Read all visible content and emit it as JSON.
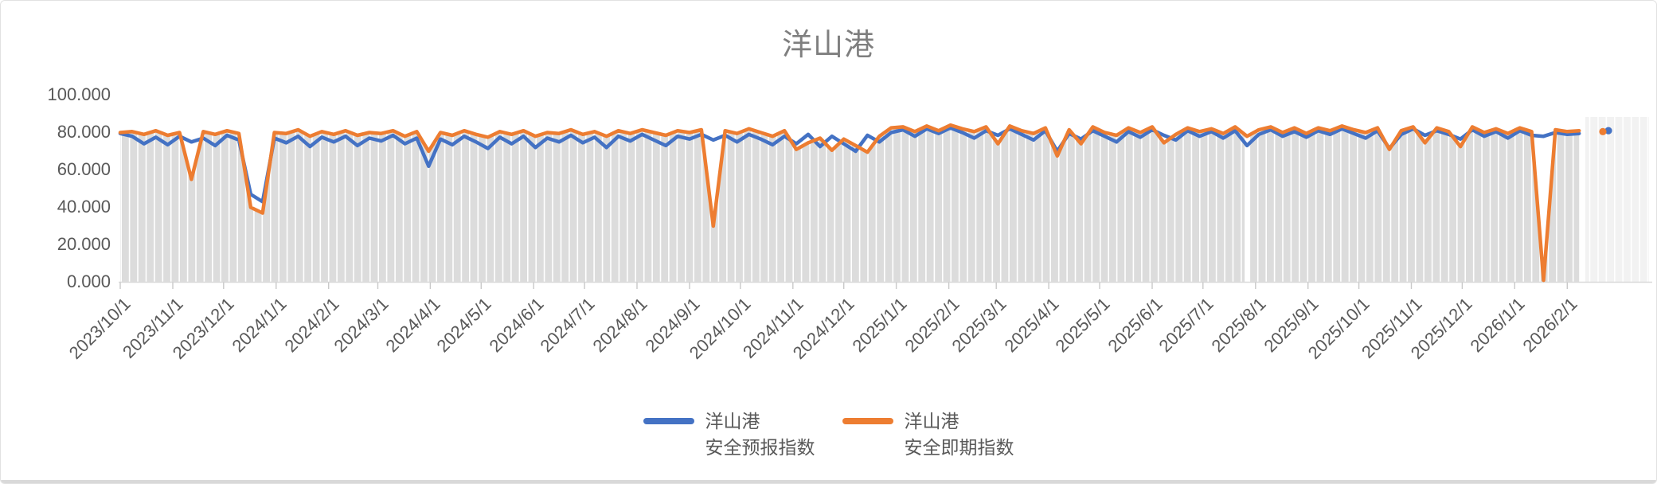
{
  "chart": {
    "title": "洋山港",
    "title_color": "#7f7f7f",
    "axis_text_color": "#595959"
  },
  "legend": {
    "items": [
      {
        "line1": "洋山港",
        "line2": "安全预报指数",
        "color": "#4472C4"
      },
      {
        "line1": "洋山港",
        "line2": "安全即期指数",
        "color": "#ED7D31"
      }
    ]
  },
  "chart_data": {
    "type": "line",
    "title": "洋山港",
    "legend_position": "bottom",
    "grid": "vertical-stripes",
    "sample_interval_days": 7,
    "x_axis": {
      "start_date": "2023/10/1",
      "end_date": "2026/2/22",
      "tick_labels": [
        "2023/10/1",
        "2023/11/1",
        "2023/12/1",
        "2024/1/1",
        "2024/2/1",
        "2024/3/1",
        "2024/4/1",
        "2024/5/1",
        "2024/6/1",
        "2024/7/1",
        "2024/8/1",
        "2024/9/1",
        "2024/10/1",
        "2024/11/1",
        "2024/12/1",
        "2025/1/1",
        "2025/2/1",
        "2025/3/1",
        "2025/4/1",
        "2025/5/1",
        "2025/6/1",
        "2025/7/1",
        "2025/8/1",
        "2025/9/1",
        "2025/10/1",
        "2025/11/1",
        "2025/12/1",
        "2026/1/1",
        "2026/2/1"
      ]
    },
    "y_axis": {
      "tick_labels": [
        "100.000",
        "80.000",
        "60.000",
        "40.000",
        "20.000",
        "0.000"
      ],
      "min": 0,
      "max": 100,
      "tick_step": 20
    },
    "series": [
      {
        "name": "洋山港 安全预报指数",
        "color": "#4472C4",
        "values": [
          79.5,
          78,
          74,
          77.5,
          73.5,
          78,
          75,
          77,
          73,
          78.5,
          76,
          47,
          43,
          77,
          74.5,
          78,
          72.5,
          77.5,
          75,
          78,
          73,
          77,
          75.5,
          78.5,
          74,
          77,
          62,
          76.5,
          73.5,
          78,
          75,
          71.5,
          77.5,
          74,
          78,
          72,
          77,
          75,
          78.5,
          74.5,
          77.5,
          72,
          78,
          75.5,
          79,
          76,
          73,
          78,
          76.5,
          79,
          76,
          78.5,
          75,
          79,
          76.5,
          73.5,
          78,
          74,
          79,
          72.5,
          78,
          74,
          70,
          78.5,
          75,
          80,
          81.5,
          78,
          82,
          79.5,
          82.5,
          80,
          77,
          81,
          78.5,
          82,
          79,
          76,
          81,
          70,
          79.5,
          76.5,
          81,
          78,
          75,
          80.5,
          77.5,
          81.5,
          78.5,
          76,
          81,
          78,
          80.5,
          77,
          81,
          73,
          79,
          81.5,
          78,
          80.5,
          77.5,
          81,
          79,
          82,
          79.5,
          77,
          81,
          71.5,
          79,
          82,
          78.5,
          81,
          79,
          76.5,
          81.5,
          78,
          80.5,
          77,
          81,
          78.5,
          78,
          80,
          79,
          79.5,
          null,
          81
        ]
      },
      {
        "name": "洋山港 安全即期指数",
        "color": "#ED7D31",
        "values": [
          80,
          80.5,
          79,
          81,
          78.5,
          80,
          55,
          80.5,
          79,
          81,
          79.5,
          40,
          37,
          80,
          79.5,
          81.5,
          78,
          80.5,
          79,
          81,
          78.5,
          80,
          79.5,
          81,
          78,
          80.5,
          70,
          80,
          78.5,
          81,
          79,
          77.5,
          80.5,
          79,
          81,
          78,
          80,
          79.5,
          81.5,
          79,
          80.5,
          78,
          81,
          79.5,
          81.5,
          80,
          78.5,
          81,
          80,
          81.5,
          30,
          81,
          79.5,
          82,
          80,
          78,
          81,
          71,
          74.5,
          77,
          70.5,
          76.5,
          73,
          69.5,
          78,
          82.5,
          83,
          80.5,
          83.5,
          81,
          84,
          82,
          80.5,
          83,
          74,
          83.5,
          81,
          79.5,
          82.5,
          67.5,
          81.5,
          74,
          83,
          80,
          78.5,
          82.5,
          80,
          83,
          74.5,
          79,
          82.5,
          80.5,
          82,
          79.5,
          83,
          78,
          81.5,
          83,
          80,
          82.5,
          79.5,
          82.5,
          81,
          83.5,
          81.5,
          80,
          82.5,
          71,
          81,
          83,
          74.5,
          82.5,
          80.5,
          72.5,
          83,
          80,
          82,
          79.5,
          82.5,
          80.5,
          1,
          81.5,
          80.5,
          81,
          null,
          80.5
        ]
      }
    ],
    "background_area": {
      "follows": "洋山港 安全即期指数",
      "fill": "#DCDCDC",
      "stripe_color": "#FFFFFF",
      "future_region_fill": "#F2F2F2"
    },
    "data_gaps": {
      "white_band_index": 95,
      "missing_indices": [
        124
      ]
    }
  }
}
